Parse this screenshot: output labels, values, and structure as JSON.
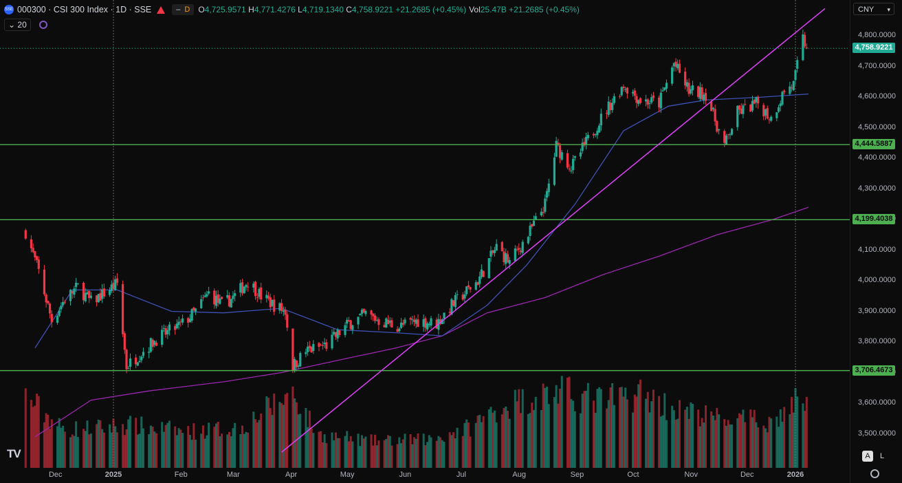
{
  "legend": {
    "symbol": "000300 · CSI 300 Index · 1D · SSE",
    "d_badge": "D",
    "open_k": "O",
    "open": "4,725.9571",
    "high_k": "H",
    "high": "4,771.4276",
    "low_k": "L",
    "low": "4,719.1340",
    "close_k": "C",
    "close": "4,758.9221",
    "change": "+21.2685 (+0.45%)",
    "vol_k": "Vol",
    "vol": "25.47B",
    "vol_change": "+21.2685 (+0.45%)"
  },
  "indicator": {
    "period": "20"
  },
  "currency": "CNY",
  "buttons": {
    "auto": "A",
    "log": "L"
  },
  "colors": {
    "up": "#22ab94",
    "down": "#f23645",
    "hline": "#4caf50",
    "trendline": "#e040fb",
    "ma_fast": "#3f51b5",
    "ma_slow": "#9c27b0",
    "last_price": "#22ab94"
  },
  "chart_data": {
    "type": "candlestick",
    "y_ticks": [
      "4,800.0000",
      "4,700.0000",
      "4,600.0000",
      "4,500.0000",
      "4,400.0000",
      "4,300.0000",
      "4,200.0000",
      "4,100.0000",
      "4,000.0000",
      "3,900.0000",
      "3,800.0000",
      "3,700.0000",
      "3,600.0000",
      "3,500.0000"
    ],
    "x_ticks": [
      "Dec",
      "2025",
      "Feb",
      "Mar",
      "Apr",
      "May",
      "Jun",
      "Jul",
      "Aug",
      "Sep",
      "Oct",
      "Nov",
      "Dec",
      "2026"
    ],
    "ylim": [
      3440,
      4860
    ],
    "last_price": "4,758.9221",
    "horizontal_levels": [
      {
        "value": 4444.5887,
        "label": "4,444.5887"
      },
      {
        "value": 4199.4038,
        "label": "4,199.4038"
      },
      {
        "value": 3706.4673,
        "label": "3,706.4673"
      }
    ],
    "trend_line": {
      "from": [
        "2025-04-01",
        3440
      ],
      "to": [
        "2026-01-05",
        4830
      ]
    },
    "close_path": [
      [
        "2024-11-15",
        4160
      ],
      [
        "2024-11-22",
        4030
      ],
      [
        "2024-11-29",
        3870
      ],
      [
        "2024-12-06",
        3940
      ],
      [
        "2024-12-13",
        3980
      ],
      [
        "2024-12-20",
        3930
      ],
      [
        "2024-12-27",
        3960
      ],
      [
        "2025-01-03",
        3990
      ],
      [
        "2025-01-08",
        3720
      ],
      [
        "2025-01-15",
        3760
      ],
      [
        "2025-01-24",
        3810
      ],
      [
        "2025-02-07",
        3860
      ],
      [
        "2025-02-14",
        3900
      ],
      [
        "2025-02-21",
        3960
      ],
      [
        "2025-02-28",
        3920
      ],
      [
        "2025-03-07",
        3950
      ],
      [
        "2025-03-14",
        4000
      ],
      [
        "2025-03-21",
        3950
      ],
      [
        "2025-03-28",
        3920
      ],
      [
        "2025-04-03",
        3900
      ],
      [
        "2025-04-07",
        3720
      ],
      [
        "2025-04-14",
        3770
      ],
      [
        "2025-04-25",
        3790
      ],
      [
        "2025-05-07",
        3860
      ],
      [
        "2025-05-16",
        3890
      ],
      [
        "2025-05-23",
        3870
      ],
      [
        "2025-06-03",
        3850
      ],
      [
        "2025-06-13",
        3870
      ],
      [
        "2025-06-23",
        3860
      ],
      [
        "2025-07-01",
        3920
      ],
      [
        "2025-07-15",
        4000
      ],
      [
        "2025-07-25",
        4110
      ],
      [
        "2025-08-01",
        4060
      ],
      [
        "2025-08-11",
        4150
      ],
      [
        "2025-08-20",
        4250
      ],
      [
        "2025-08-26",
        4440
      ],
      [
        "2025-09-03",
        4370
      ],
      [
        "2025-09-12",
        4460
      ],
      [
        "2025-09-22",
        4560
      ],
      [
        "2025-10-01",
        4640
      ],
      [
        "2025-10-10",
        4590
      ],
      [
        "2025-10-20",
        4580
      ],
      [
        "2025-10-28",
        4710
      ],
      [
        "2025-11-05",
        4620
      ],
      [
        "2025-11-14",
        4610
      ],
      [
        "2025-11-24",
        4440
      ],
      [
        "2025-12-01",
        4550
      ],
      [
        "2025-12-12",
        4580
      ],
      [
        "2025-12-19",
        4530
      ],
      [
        "2025-12-26",
        4620
      ],
      [
        "2025-12-31",
        4640
      ],
      [
        "2026-01-05",
        4790
      ],
      [
        "2026-01-07",
        4758.92
      ]
    ],
    "ma_20": [
      [
        "2024-11-20",
        3780
      ],
      [
        "2024-12-10",
        3970
      ],
      [
        "2025-01-03",
        3970
      ],
      [
        "2025-02-01",
        3900
      ],
      [
        "2025-03-01",
        3895
      ],
      [
        "2025-04-01",
        3910
      ],
      [
        "2025-05-01",
        3840
      ],
      [
        "2025-06-01",
        3830
      ],
      [
        "2025-06-26",
        3820
      ],
      [
        "2025-07-20",
        3920
      ],
      [
        "2025-08-10",
        4050
      ],
      [
        "2025-09-05",
        4250
      ],
      [
        "2025-10-01",
        4490
      ],
      [
        "2025-10-25",
        4570
      ],
      [
        "2025-11-14",
        4590
      ],
      [
        "2025-12-15",
        4600
      ],
      [
        "2026-01-08",
        4610
      ]
    ],
    "ma_200": [
      [
        "2024-11-20",
        3490
      ],
      [
        "2024-12-20",
        3610
      ],
      [
        "2025-01-20",
        3640
      ],
      [
        "2025-03-01",
        3670
      ],
      [
        "2025-04-01",
        3700
      ],
      [
        "2025-05-01",
        3740
      ],
      [
        "2025-06-01",
        3780
      ],
      [
        "2025-06-26",
        3820
      ],
      [
        "2025-07-20",
        3895
      ],
      [
        "2025-08-20",
        3945
      ],
      [
        "2025-09-20",
        4020
      ],
      [
        "2025-10-20",
        4080
      ],
      [
        "2025-11-20",
        4150
      ],
      [
        "2025-12-20",
        4200
      ],
      [
        "2026-01-08",
        4240
      ]
    ],
    "volume_profile": [
      [
        "2024-11-15",
        0.75
      ],
      [
        "2024-12-05",
        0.4
      ],
      [
        "2024-12-25",
        0.42
      ],
      [
        "2025-01-08",
        0.45
      ],
      [
        "2025-02-10",
        0.38
      ],
      [
        "2025-03-10",
        0.42
      ],
      [
        "2025-04-07",
        0.8
      ],
      [
        "2025-04-20",
        0.35
      ],
      [
        "2025-05-20",
        0.28
      ],
      [
        "2025-06-20",
        0.3
      ],
      [
        "2025-07-10",
        0.42
      ],
      [
        "2025-07-28",
        0.65
      ],
      [
        "2025-08-26",
        0.8
      ],
      [
        "2025-09-20",
        0.7
      ],
      [
        "2025-10-10",
        0.78
      ],
      [
        "2025-10-30",
        0.6
      ],
      [
        "2025-11-20",
        0.52
      ],
      [
        "2025-12-20",
        0.48
      ],
      [
        "2026-01-05",
        0.75
      ]
    ]
  }
}
